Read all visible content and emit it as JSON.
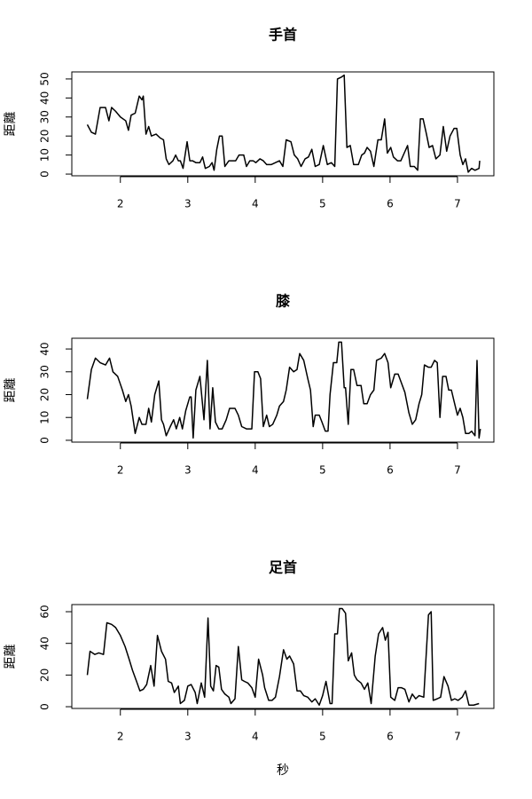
{
  "chart_data": [
    {
      "type": "line",
      "title": "手首",
      "y_label": "距離",
      "color": "#000000",
      "xlim": [
        1.28,
        7.54
      ],
      "xticks": [
        2,
        3,
        4,
        5,
        6,
        7
      ],
      "ylim": [
        -0.9,
        53.7
      ],
      "yticks": [
        0,
        10,
        20,
        30,
        40,
        50
      ],
      "x": [
        1.51,
        1.57,
        1.63,
        1.7,
        1.78,
        1.83,
        1.87,
        1.93,
        2.0,
        2.08,
        2.12,
        2.16,
        2.22,
        2.28,
        2.32,
        2.34,
        2.38,
        2.42,
        2.46,
        2.53,
        2.59,
        2.64,
        2.68,
        2.72,
        2.78,
        2.82,
        2.86,
        2.89,
        2.93,
        2.99,
        3.03,
        3.07,
        3.12,
        3.18,
        3.22,
        3.26,
        3.32,
        3.36,
        3.39,
        3.43,
        3.47,
        3.51,
        3.55,
        3.61,
        3.66,
        3.71,
        3.76,
        3.83,
        3.87,
        3.92,
        3.97,
        4.01,
        4.07,
        4.12,
        4.17,
        4.24,
        4.3,
        4.36,
        4.41,
        4.46,
        4.53,
        4.58,
        4.63,
        4.68,
        4.74,
        4.79,
        4.84,
        4.89,
        4.95,
        5.01,
        5.07,
        5.13,
        5.18,
        5.22,
        5.28,
        5.32,
        5.36,
        5.41,
        5.46,
        5.53,
        5.58,
        5.62,
        5.66,
        5.71,
        5.76,
        5.82,
        5.87,
        5.92,
        5.96,
        6.01,
        6.05,
        6.11,
        6.16,
        6.21,
        6.26,
        6.3,
        6.36,
        6.41,
        6.45,
        6.49,
        6.54,
        6.58,
        6.63,
        6.68,
        6.74,
        6.79,
        6.84,
        6.89,
        6.95,
        6.99,
        7.04,
        7.08,
        7.12,
        7.16,
        7.21,
        7.26,
        7.32,
        7.33
      ],
      "values": [
        26,
        22,
        21,
        35,
        35,
        28,
        35,
        33,
        30,
        28,
        23,
        31,
        32,
        41,
        39,
        41,
        21,
        25,
        20,
        21,
        19,
        18,
        8,
        5,
        7,
        10,
        7,
        7,
        3,
        17,
        7,
        7,
        6,
        6,
        9,
        3,
        4,
        6,
        2,
        13,
        20,
        20,
        4,
        7,
        7,
        7,
        10,
        10,
        4,
        7,
        7,
        6,
        8,
        7,
        5,
        5,
        6,
        7,
        4,
        18,
        17,
        10,
        8,
        4,
        8,
        9,
        13,
        4,
        5,
        15,
        5,
        6,
        4,
        50,
        51,
        52,
        14,
        15,
        5,
        5,
        10,
        11,
        14,
        12,
        4,
        18,
        18,
        29,
        11,
        14,
        9,
        7,
        7,
        11,
        15,
        4,
        4,
        2,
        29,
        29,
        21,
        14,
        15,
        8,
        10,
        25,
        12,
        20,
        24,
        24,
        10,
        5,
        8,
        1,
        3,
        2,
        3,
        7
      ]
    },
    {
      "type": "line",
      "title": "膝",
      "y_label": "距離",
      "color": "#000000",
      "xlim": [
        1.28,
        7.54
      ],
      "xticks": [
        2,
        3,
        4,
        5,
        6,
        7
      ],
      "ylim": [
        -0.8,
        44.7
      ],
      "yticks": [
        0,
        10,
        20,
        30,
        40
      ],
      "x": [
        1.51,
        1.57,
        1.63,
        1.7,
        1.78,
        1.84,
        1.89,
        1.96,
        2.03,
        2.08,
        2.12,
        2.16,
        2.22,
        2.28,
        2.32,
        2.38,
        2.42,
        2.46,
        2.51,
        2.57,
        2.61,
        2.64,
        2.68,
        2.74,
        2.79,
        2.83,
        2.88,
        2.92,
        2.97,
        3.03,
        3.05,
        3.08,
        3.12,
        3.18,
        3.24,
        3.29,
        3.33,
        3.37,
        3.41,
        3.46,
        3.51,
        3.57,
        3.62,
        3.7,
        3.75,
        3.8,
        3.87,
        3.95,
        3.99,
        4.04,
        4.08,
        4.12,
        4.17,
        4.21,
        4.26,
        4.32,
        4.36,
        4.42,
        4.46,
        4.51,
        4.57,
        4.62,
        4.66,
        4.72,
        4.78,
        4.82,
        4.86,
        4.89,
        4.95,
        4.99,
        5.04,
        5.08,
        5.11,
        5.16,
        5.21,
        5.24,
        5.28,
        5.32,
        5.34,
        5.38,
        5.42,
        5.46,
        5.51,
        5.57,
        5.61,
        5.66,
        5.71,
        5.76,
        5.8,
        5.87,
        5.92,
        5.97,
        6.01,
        6.07,
        6.12,
        6.17,
        6.22,
        6.28,
        6.33,
        6.38,
        6.43,
        6.47,
        6.51,
        6.57,
        6.61,
        6.66,
        6.7,
        6.74,
        6.78,
        6.83,
        6.87,
        6.91,
        6.95,
        7.0,
        7.04,
        7.08,
        7.12,
        7.17,
        7.21,
        7.26,
        7.29,
        7.32,
        7.34
      ],
      "values": [
        18,
        31,
        36,
        34,
        33,
        36,
        30,
        28,
        22,
        17,
        20,
        15,
        3,
        10,
        7,
        7,
        14,
        8,
        20,
        26,
        9,
        7,
        2,
        6,
        9,
        5,
        10,
        5,
        13,
        19,
        19,
        1,
        22,
        28,
        9,
        35,
        5,
        23,
        8,
        5,
        5,
        9,
        14,
        14,
        11,
        6,
        5,
        5,
        30,
        30,
        27,
        6,
        11,
        6,
        7,
        11,
        15,
        17,
        22,
        32,
        30,
        31,
        38,
        35,
        27,
        22,
        6,
        11,
        11,
        8,
        4,
        4,
        20,
        34,
        34,
        43,
        43,
        23,
        23,
        7,
        31,
        31,
        24,
        24,
        16,
        16,
        20,
        22,
        35,
        36,
        38,
        34,
        23,
        29,
        29,
        25,
        21,
        12,
        7,
        9,
        16,
        20,
        33,
        32,
        32,
        35,
        34,
        10,
        28,
        28,
        22,
        22,
        17,
        11,
        14,
        10,
        3,
        3,
        4,
        2,
        35,
        1,
        5
      ]
    },
    {
      "type": "line",
      "title": "足首",
      "y_label": "距離",
      "x_label": "秒",
      "color": "#000000",
      "xlim": [
        1.28,
        7.54
      ],
      "xticks": [
        2,
        3,
        4,
        5,
        6,
        7
      ],
      "ylim": [
        -1.1,
        64.5
      ],
      "yticks": [
        0,
        20,
        40,
        60
      ],
      "x": [
        1.51,
        1.55,
        1.62,
        1.68,
        1.75,
        1.8,
        1.87,
        1.93,
        2.0,
        2.07,
        2.13,
        2.18,
        2.24,
        2.29,
        2.34,
        2.39,
        2.45,
        2.5,
        2.55,
        2.61,
        2.67,
        2.71,
        2.76,
        2.8,
        2.86,
        2.89,
        2.95,
        3.0,
        3.05,
        3.11,
        3.14,
        3.2,
        3.25,
        3.3,
        3.34,
        3.38,
        3.42,
        3.46,
        3.5,
        3.55,
        3.61,
        3.64,
        3.7,
        3.75,
        3.8,
        3.84,
        3.89,
        3.95,
        4.0,
        4.05,
        4.11,
        4.14,
        4.2,
        4.25,
        4.3,
        4.36,
        4.42,
        4.47,
        4.51,
        4.57,
        4.62,
        4.67,
        4.72,
        4.78,
        4.84,
        4.89,
        4.95,
        5.0,
        5.05,
        5.11,
        5.14,
        5.18,
        5.22,
        5.25,
        5.29,
        5.34,
        5.38,
        5.43,
        5.47,
        5.51,
        5.57,
        5.62,
        5.67,
        5.72,
        5.78,
        5.83,
        5.89,
        5.93,
        5.97,
        6.01,
        6.07,
        6.12,
        6.17,
        6.22,
        6.28,
        6.33,
        6.38,
        6.43,
        6.5,
        6.57,
        6.61,
        6.64,
        6.7,
        6.75,
        6.8,
        6.86,
        6.91,
        6.96,
        7.01,
        7.07,
        7.12,
        7.17,
        7.24,
        7.32
      ],
      "values": [
        20,
        35,
        33,
        34,
        33,
        53,
        52,
        50,
        45,
        38,
        30,
        23,
        16,
        10,
        11,
        14,
        26,
        13,
        45,
        35,
        30,
        16,
        15,
        9,
        13,
        2,
        4,
        13,
        14,
        9,
        2,
        15,
        6,
        56,
        13,
        10,
        26,
        25,
        11,
        8,
        6,
        2,
        5,
        38,
        17,
        16,
        15,
        12,
        6,
        30,
        20,
        12,
        4,
        4,
        6,
        19,
        36,
        30,
        32,
        27,
        10,
        10,
        7,
        6,
        3,
        5,
        1,
        7,
        16,
        2,
        2,
        46,
        46,
        62,
        62,
        59,
        29,
        34,
        20,
        17,
        15,
        11,
        15,
        2,
        32,
        46,
        50,
        42,
        47,
        6,
        4,
        12,
        12,
        11,
        3,
        8,
        5,
        7,
        6,
        58,
        60,
        4,
        5,
        6,
        19,
        13,
        4,
        5,
        4,
        6,
        10,
        1,
        1,
        2
      ]
    }
  ]
}
